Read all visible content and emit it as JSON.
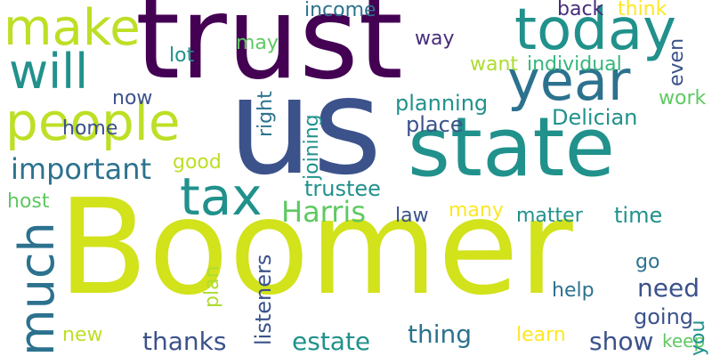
{
  "words": [
    {
      "text": "trust",
      "color": "#440154"
    },
    {
      "text": "us",
      "color": "#3b528b"
    },
    {
      "text": "state",
      "color": "#21918c"
    },
    {
      "text": "Boomer",
      "color": "#d2e21b"
    },
    {
      "text": "today",
      "color": "#21918c"
    },
    {
      "text": "year",
      "color": "#2c728e"
    },
    {
      "text": "make",
      "color": "#bddf26"
    },
    {
      "text": "will",
      "color": "#21918c"
    },
    {
      "text": "people",
      "color": "#bddf26"
    },
    {
      "text": "tax",
      "color": "#21918c"
    },
    {
      "text": "much",
      "color": "#2c728e"
    },
    {
      "text": "important",
      "color": "#2c728e"
    },
    {
      "text": "Harris",
      "color": "#5ec962"
    },
    {
      "text": "income",
      "color": "#2c728e"
    },
    {
      "text": "back",
      "color": "#472d7b"
    },
    {
      "text": "think",
      "color": "#fde725"
    },
    {
      "text": "way",
      "color": "#472d7b"
    },
    {
      "text": "even",
      "color": "#3b528b"
    },
    {
      "text": "want",
      "color": "#addc30"
    },
    {
      "text": "individual",
      "color": "#35b779"
    },
    {
      "text": "may",
      "color": "#5ec962"
    },
    {
      "text": "lot",
      "color": "#21918c"
    },
    {
      "text": "now",
      "color": "#3b528b"
    },
    {
      "text": "right",
      "color": "#2c728e"
    },
    {
      "text": "planning",
      "color": "#21918c"
    },
    {
      "text": "work",
      "color": "#5ec962"
    },
    {
      "text": "Delician",
      "color": "#21918c"
    },
    {
      "text": "place",
      "color": "#3b528b"
    },
    {
      "text": "home",
      "color": "#3b528b"
    },
    {
      "text": "good",
      "color": "#bddf26"
    },
    {
      "text": "joining",
      "color": "#21918c"
    },
    {
      "text": "trustee",
      "color": "#21918c"
    },
    {
      "text": "host",
      "color": "#5ec962"
    },
    {
      "text": "law",
      "color": "#3b528b"
    },
    {
      "text": "many",
      "color": "#fde725"
    },
    {
      "text": "matter",
      "color": "#21918c"
    },
    {
      "text": "time",
      "color": "#21918c"
    },
    {
      "text": "need",
      "color": "#3b528b"
    },
    {
      "text": "go",
      "color": "#2c728e"
    },
    {
      "text": "listeners",
      "color": "#3b528b"
    },
    {
      "text": "plan",
      "color": "#addc30"
    },
    {
      "text": "help",
      "color": "#2c728e"
    },
    {
      "text": "going",
      "color": "#3b528b"
    },
    {
      "text": "new",
      "color": "#bddf26"
    },
    {
      "text": "thanks",
      "color": "#3b528b"
    },
    {
      "text": "estate",
      "color": "#21918c"
    },
    {
      "text": "thing",
      "color": "#2c728e"
    },
    {
      "text": "learn",
      "color": "#fde725"
    },
    {
      "text": "show",
      "color": "#3b528b"
    },
    {
      "text": "keep",
      "color": "#5ec962"
    },
    {
      "text": "you",
      "color": "#21918c"
    }
  ]
}
